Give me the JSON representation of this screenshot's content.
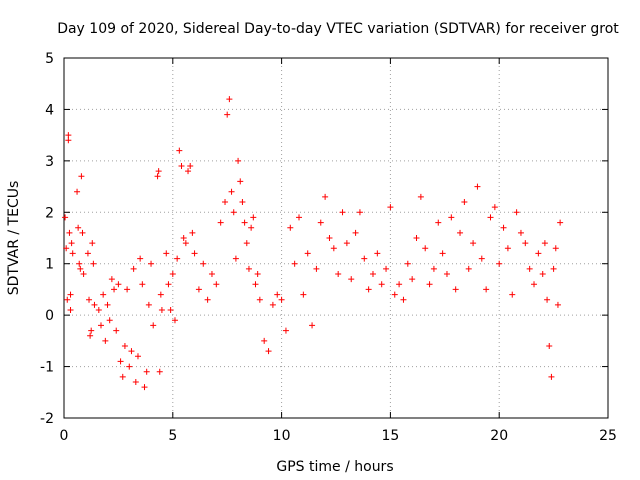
{
  "chart_data": {
    "type": "scatter",
    "title": "Day 109 of 2020, Sidereal Day-to-day VTEC variation (SDTVAR) for receiver grot",
    "xlabel": "GPS time / hours",
    "ylabel": "SDTVAR / TECUs",
    "xlim": [
      0,
      25
    ],
    "ylim": [
      -2,
      5
    ],
    "xticks": [
      "0",
      "5",
      "10",
      "15",
      "20",
      "25"
    ],
    "yticks": [
      "-2",
      "-1",
      "0",
      "1",
      "2",
      "3",
      "4",
      "5"
    ],
    "grid": true,
    "marker": "plus",
    "series_color": "#ff0000",
    "series": [
      {
        "name": "SDTVAR",
        "x": [
          0.05,
          0.1,
          0.15,
          0.2,
          0.2,
          0.25,
          0.3,
          0.3,
          0.35,
          0.4,
          0.6,
          0.65,
          0.7,
          0.75,
          0.8,
          0.85,
          0.9,
          1.1,
          1.15,
          1.2,
          1.25,
          1.3,
          1.35,
          1.4,
          1.6,
          1.7,
          1.8,
          1.9,
          2.0,
          2.1,
          2.2,
          2.3,
          2.4,
          2.5,
          2.6,
          2.7,
          2.8,
          2.9,
          3.0,
          3.1,
          3.2,
          3.3,
          3.4,
          3.5,
          3.6,
          3.7,
          3.8,
          3.9,
          4.0,
          4.1,
          4.3,
          4.35,
          4.4,
          4.45,
          4.5,
          4.7,
          4.8,
          4.9,
          5.0,
          5.1,
          5.2,
          5.3,
          5.4,
          5.5,
          5.6,
          5.7,
          5.8,
          5.9,
          6.0,
          6.2,
          6.4,
          6.6,
          6.8,
          7.0,
          7.2,
          7.4,
          7.5,
          7.6,
          7.7,
          7.8,
          7.9,
          8.0,
          8.1,
          8.2,
          8.3,
          8.4,
          8.5,
          8.6,
          8.7,
          8.8,
          8.9,
          9.0,
          9.2,
          9.4,
          9.6,
          9.8,
          10.0,
          10.2,
          10.4,
          10.6,
          10.8,
          11.0,
          11.2,
          11.4,
          11.6,
          11.8,
          12.0,
          12.2,
          12.4,
          12.6,
          12.8,
          13.0,
          13.2,
          13.4,
          13.6,
          13.8,
          14.0,
          14.2,
          14.4,
          14.6,
          14.8,
          15.0,
          15.2,
          15.4,
          15.6,
          15.8,
          16.0,
          16.2,
          16.4,
          16.6,
          16.8,
          17.0,
          17.2,
          17.4,
          17.6,
          17.8,
          18.0,
          18.2,
          18.4,
          18.6,
          18.8,
          19.0,
          19.2,
          19.4,
          19.6,
          19.8,
          20.0,
          20.2,
          20.4,
          20.6,
          20.8,
          21.0,
          21.2,
          21.4,
          21.6,
          21.8,
          22.0,
          22.1,
          22.2,
          22.3,
          22.4,
          22.5,
          22.6,
          22.7,
          22.8
        ],
        "y": [
          1.9,
          1.3,
          0.3,
          3.4,
          3.5,
          1.6,
          0.4,
          0.1,
          1.4,
          1.2,
          2.4,
          1.7,
          1.0,
          0.9,
          2.7,
          1.6,
          0.8,
          1.2,
          0.3,
          -0.4,
          -0.3,
          1.4,
          1.0,
          0.2,
          0.1,
          -0.2,
          0.4,
          -0.5,
          0.2,
          -0.1,
          0.7,
          0.5,
          -0.3,
          0.6,
          -0.9,
          -1.2,
          -0.6,
          0.5,
          -1.0,
          -0.7,
          0.9,
          -1.3,
          -0.8,
          1.1,
          0.6,
          -1.4,
          -1.1,
          0.2,
          1.0,
          -0.2,
          2.7,
          2.8,
          -1.1,
          0.4,
          0.1,
          1.2,
          0.6,
          0.1,
          0.8,
          -0.1,
          1.1,
          3.2,
          2.9,
          1.5,
          1.4,
          2.8,
          2.9,
          1.6,
          1.2,
          0.5,
          1.0,
          0.3,
          0.8,
          0.6,
          1.8,
          2.2,
          3.9,
          4.2,
          2.4,
          2.0,
          1.1,
          3.0,
          2.6,
          2.2,
          1.8,
          1.4,
          0.9,
          1.7,
          1.9,
          0.6,
          0.8,
          0.3,
          -0.5,
          -0.7,
          0.2,
          0.4,
          0.3,
          -0.3,
          1.7,
          1.0,
          1.9,
          0.4,
          1.2,
          -0.2,
          0.9,
          1.8,
          2.3,
          1.5,
          1.3,
          0.8,
          2.0,
          1.4,
          0.7,
          1.6,
          2.0,
          1.1,
          0.5,
          0.8,
          1.2,
          0.6,
          0.9,
          2.1,
          0.4,
          0.6,
          0.3,
          1.0,
          0.7,
          1.5,
          2.3,
          1.3,
          0.6,
          0.9,
          1.8,
          1.2,
          0.8,
          1.9,
          0.5,
          1.6,
          2.2,
          0.9,
          1.4,
          2.5,
          1.1,
          0.5,
          1.9,
          2.1,
          1.0,
          1.7,
          1.3,
          0.4,
          2.0,
          1.6,
          1.4,
          0.9,
          0.6,
          1.2,
          0.8,
          1.4,
          0.3,
          -0.6,
          -1.2,
          0.9,
          1.3,
          0.2,
          1.8
        ]
      }
    ]
  }
}
